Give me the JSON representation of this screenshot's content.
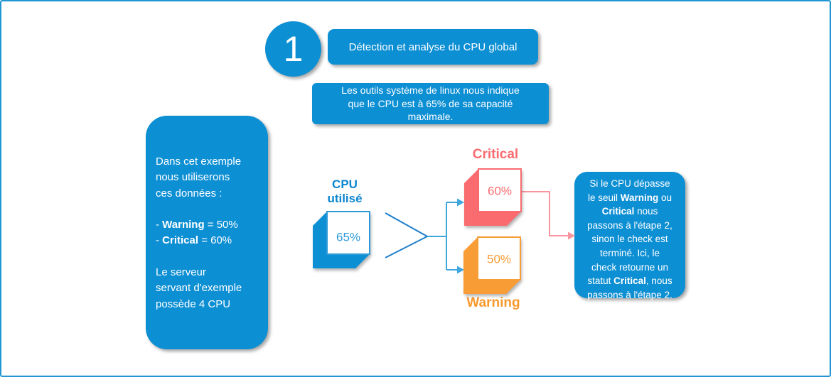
{
  "colors": {
    "primary_blue": "#0D8FD4",
    "canvas_border": "#2196D3",
    "cpu_square_blue": "#2E9AD8",
    "cpu_label_blue": "#0C86CE",
    "chevron_blue": "#1D7ECC",
    "branch_arrow_blue": "#3FA6DE",
    "critical_red": "#F96B6F",
    "critical_connector_red": "#F9959E",
    "warning_orange": "#F89C35"
  },
  "step": {
    "number": "1",
    "title": "Détection et analyse du CPU global"
  },
  "info_box": {
    "lines": [
      "Les outils système de linux nous indique",
      "que le CPU est à 65% de sa capacité",
      "maximale."
    ]
  },
  "left_box": {
    "rich_lines": [
      [
        {
          "t": "Dans cet exemple",
          "b": false
        }
      ],
      [
        {
          "t": "nous utiliserons",
          "b": false
        }
      ],
      [
        {
          "t": "ces données :",
          "b": false
        }
      ],
      [],
      [
        {
          "t": "- ",
          "b": false
        },
        {
          "t": "Warning",
          "b": true
        },
        {
          "t": " = 50%",
          "b": false
        }
      ],
      [
        {
          "t": "- ",
          "b": false
        },
        {
          "t": "Critical",
          "b": true
        },
        {
          "t": " = 60%",
          "b": false
        }
      ],
      [],
      [
        {
          "t": "Le serveur",
          "b": false
        }
      ],
      [
        {
          "t": "servant d'exemple",
          "b": false
        }
      ],
      [
        {
          "t": "possède 4 CPU",
          "b": false
        }
      ]
    ]
  },
  "cpu_shape": {
    "label_line1": "CPU",
    "label_line2": "utilisé",
    "value": "65%"
  },
  "critical_shape": {
    "label": "Critical",
    "value": "60%"
  },
  "warning_shape": {
    "label": "Warning",
    "value": "50%"
  },
  "right_box": {
    "rich_lines": [
      [
        {
          "t": "Si le CPU dépasse",
          "b": false
        }
      ],
      [
        {
          "t": "le seuil ",
          "b": false
        },
        {
          "t": "Warning",
          "b": true
        },
        {
          "t": " ou",
          "b": false
        }
      ],
      [
        {
          "t": "Critical",
          "b": true
        },
        {
          "t": " nous",
          "b": false
        }
      ],
      [
        {
          "t": "passons à l'étape 2,",
          "b": false
        }
      ],
      [
        {
          "t": "sinon le check est",
          "b": false
        }
      ],
      [
        {
          "t": "terminé. Ici, le",
          "b": false
        }
      ],
      [
        {
          "t": "check retourne un",
          "b": false
        }
      ],
      [
        {
          "t": "statut ",
          "b": false
        },
        {
          "t": "Critical",
          "b": true
        },
        {
          "t": ", nous",
          "b": false
        }
      ],
      [
        {
          "t": "passons à l'étape 2.",
          "b": false
        }
      ]
    ]
  }
}
